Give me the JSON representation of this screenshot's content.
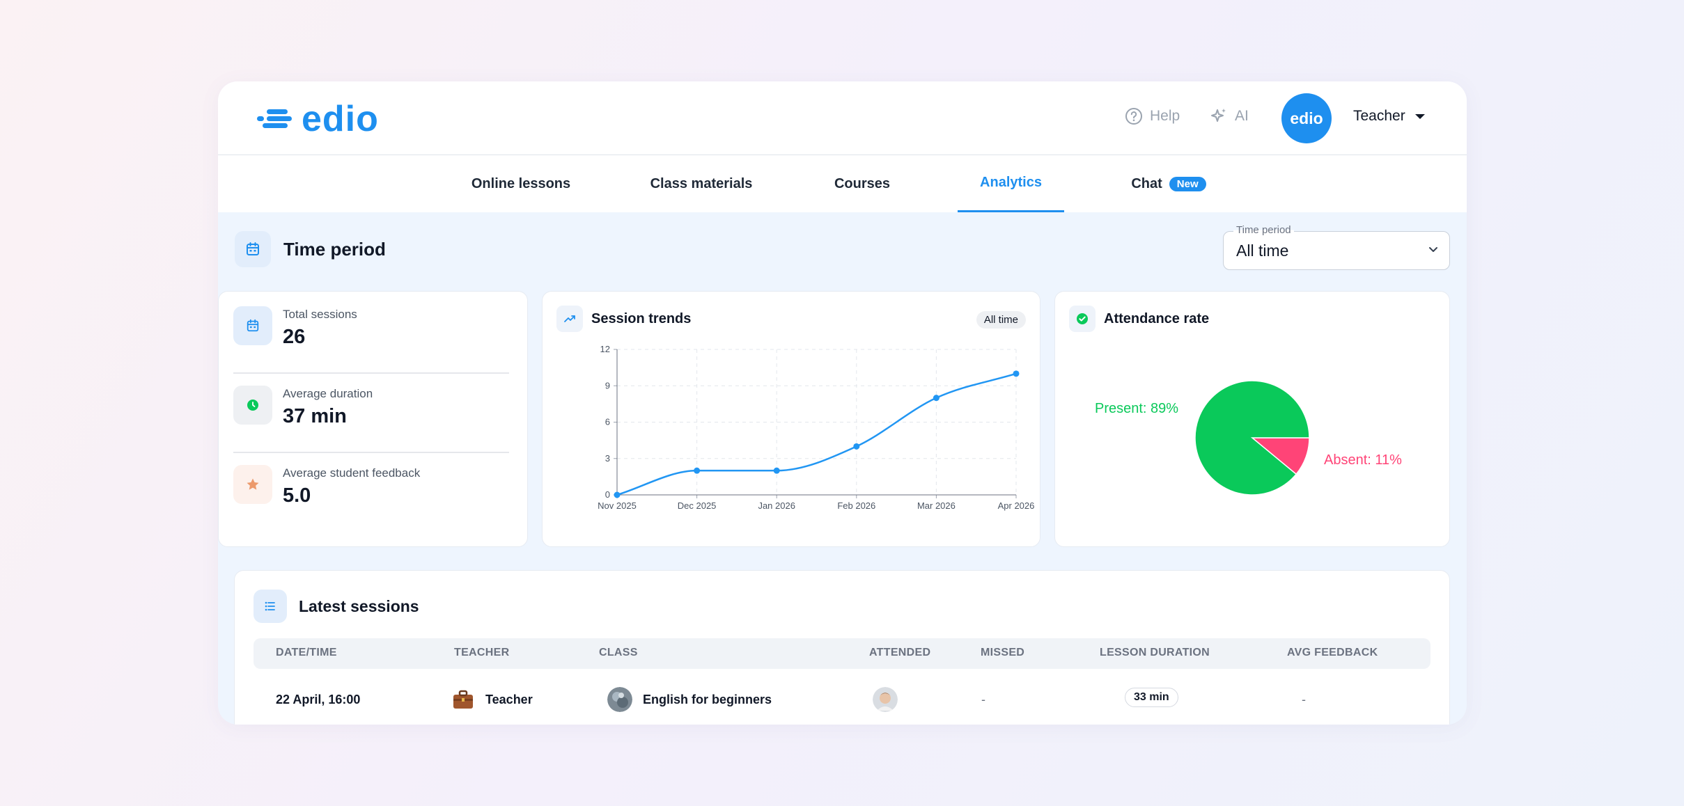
{
  "header": {
    "brand": "edio",
    "help_label": "Help",
    "ai_label": "AI",
    "avatar_text": "edio",
    "role": "Teacher"
  },
  "tabs": [
    {
      "label": "Online lessons"
    },
    {
      "label": "Class materials"
    },
    {
      "label": "Courses"
    },
    {
      "label": "Analytics",
      "active": true
    },
    {
      "label": "Chat",
      "badge": "New"
    }
  ],
  "time_period": {
    "title": "Time period",
    "select_label": "Time period",
    "select_value": "All time"
  },
  "stats": [
    {
      "label": "Total sessions",
      "value": "26",
      "icon": "calendar-icon"
    },
    {
      "label": "Average duration",
      "value": "37 min",
      "icon": "clock-icon"
    },
    {
      "label": "Average student feedback",
      "value": "5.0",
      "icon": "star-icon"
    }
  ],
  "session_trends": {
    "title": "Session trends",
    "chip": "All time"
  },
  "attendance": {
    "title": "Attendance rate"
  },
  "chart_data": [
    {
      "type": "line",
      "title": "Session trends",
      "x": [
        "Nov 2025",
        "Dec 2025",
        "Jan 2026",
        "Feb 2026",
        "Mar 2026",
        "Apr 2026"
      ],
      "values": [
        0,
        2,
        2,
        4,
        8,
        10
      ],
      "ylim": [
        0,
        12
      ],
      "yticks": [
        0,
        3,
        6,
        9,
        12
      ],
      "grid": true,
      "color": "#2196f3"
    },
    {
      "type": "pie",
      "title": "Attendance rate",
      "slices": [
        {
          "label": "Present: 89%",
          "value": 89,
          "color": "#0ac95a"
        },
        {
          "label": "Absent: 11%",
          "value": 11,
          "color": "#ff4477"
        }
      ]
    }
  ],
  "latest": {
    "title": "Latest sessions",
    "columns": [
      "DATE/TIME",
      "TEACHER",
      "CLASS",
      "ATTENDED",
      "MISSED",
      "LESSON DURATION",
      "AVG FEEDBACK"
    ],
    "rows": [
      {
        "datetime": "22 April, 16:00",
        "teacher": "Teacher",
        "class": "English for beginners",
        "missed": "-",
        "duration": "33 min",
        "feedback": "-"
      }
    ]
  },
  "colors": {
    "accent": "#1e8fef",
    "present": "#0ac95a",
    "absent": "#ff4477"
  }
}
